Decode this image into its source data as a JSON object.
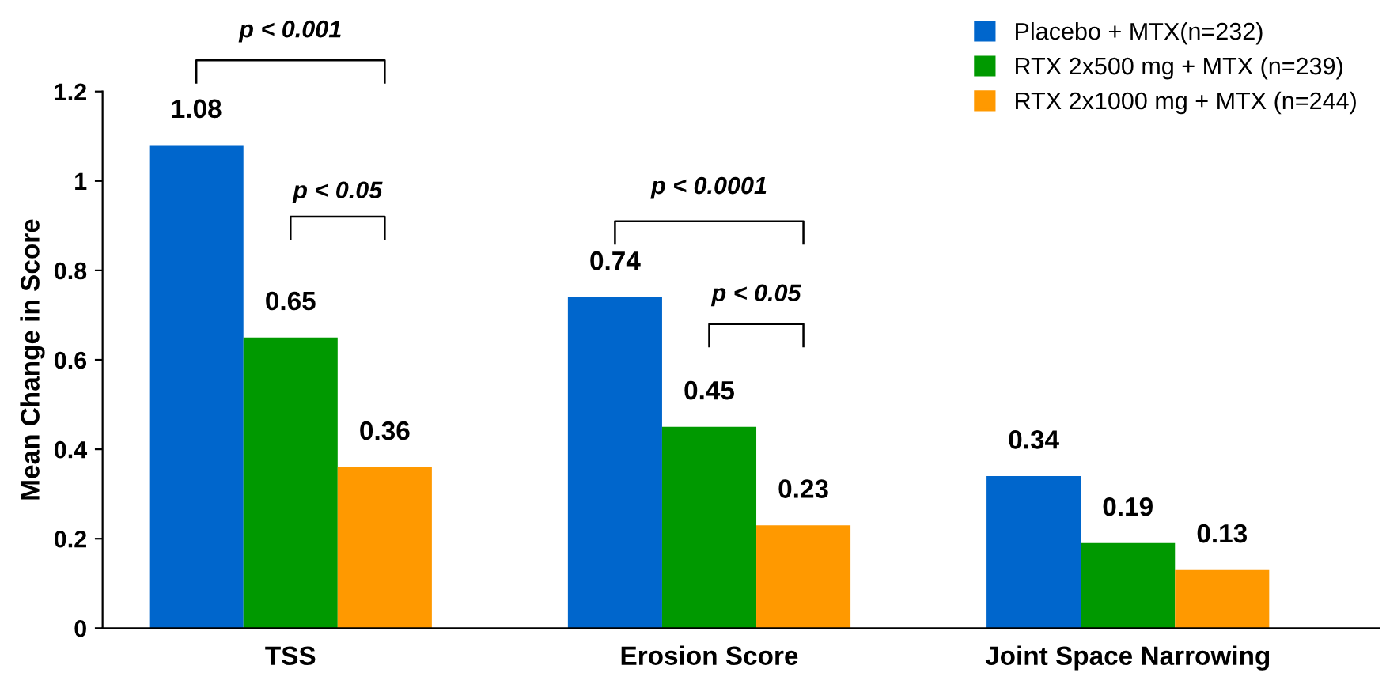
{
  "chart_data": {
    "type": "bar",
    "ylabel": "Mean Change in Score",
    "categories": [
      "TSS",
      "Erosion Score",
      "Joint Space Narrowing"
    ],
    "series": [
      {
        "name": "Placebo + MTX(n=232)",
        "color": "#0066cc",
        "values": [
          1.08,
          0.74,
          0.34
        ]
      },
      {
        "name": "RTX 2x500 mg + MTX (n=239)",
        "color": "#009900",
        "values": [
          0.65,
          0.45,
          0.19
        ]
      },
      {
        "name": "RTX 2x1000 mg + MTX (n=244)",
        "color": "#ff9900",
        "values": [
          0.36,
          0.23,
          0.13
        ]
      }
    ],
    "ylim": [
      0,
      1.2
    ],
    "yticks": [
      0,
      0.2,
      0.4,
      0.6,
      0.8,
      1,
      1.2
    ],
    "data_labels": true,
    "grid": false,
    "legend": "top right",
    "annotations": [
      "p < 0.001",
      "p < 0.05",
      "p < 0.0001",
      "p < 0.05"
    ]
  }
}
